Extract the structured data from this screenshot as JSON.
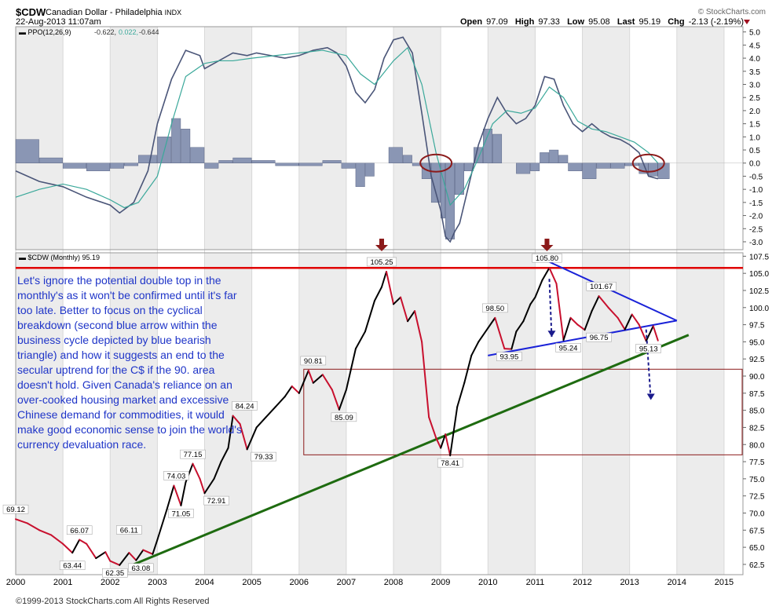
{
  "header": {
    "symbol": "$CDW",
    "name": "Canadian Dollar - Philadelphia",
    "exchange": "INDX",
    "timestamp": "22-Aug-2013 11:07am",
    "brand": "© StockCharts.com",
    "open_label": "Open",
    "open": "97.09",
    "high_label": "High",
    "high": "97.33",
    "low_label": "Low",
    "low": "95.08",
    "last_label": "Last",
    "last": "95.19",
    "chg_label": "Chg",
    "chg": "-2.13 (-2.19%)"
  },
  "footer": "©1999-2013 StockCharts.com All Rights Reserved",
  "annotation": "Let's ignore the potential double top in the monthly's as it won't be confirmed until it's far too late. Better to focus on the cyclical breakdown (second blue arrow within the business cycle depicted by blue bearish triangle) and how it suggests an end to the secular uptrend for the C$ if the 90. area doesn't hold. Given Canada's reliance on an over-cooked housing market and excessive Chinese demand for commodities, it would make good economic sense to join the world's currency devaluation race.",
  "colors": {
    "price_up": "#000000",
    "price_down": "#c8102e",
    "ppo_line": "#4a5578",
    "ppo_signal": "#3aa89a",
    "histogram": "#8a96b4",
    "resistance": "#e00000",
    "support_trend": "#1e6b10",
    "triangle": "#1a22d8",
    "box": "#8b1a1a",
    "marker": "#8b1a1a"
  },
  "chart_data": [
    {
      "type": "line",
      "title": "PPO(12,26,9)",
      "values_label": [
        "-0.622",
        "0.022",
        "-0.644"
      ],
      "ylim": [
        -3.3,
        5.2
      ],
      "yticks": [
        "5.0",
        "4.5",
        "4.0",
        "3.5",
        "3.0",
        "2.5",
        "2.0",
        "1.5",
        "1.0",
        "0.5",
        "0.0",
        "-0.5",
        "-1.0",
        "-1.5",
        "-2.0",
        "-2.5",
        "-3.0"
      ],
      "series": [
        {
          "role": "ppo",
          "x": [
            2000.0,
            2000.5,
            2001.0,
            2001.5,
            2002.0,
            2002.2,
            2002.5,
            2002.8,
            2003.0,
            2003.3,
            2003.6,
            2003.9,
            2004.0,
            2004.3,
            2004.6,
            2004.9,
            2005.1,
            2005.4,
            2005.7,
            2006.0,
            2006.3,
            2006.6,
            2006.8,
            2007.0,
            2007.2,
            2007.4,
            2007.6,
            2007.8,
            2008.0,
            2008.2,
            2008.4,
            2008.6,
            2008.8,
            2009.0,
            2009.1,
            2009.2,
            2009.3,
            2009.4,
            2009.6,
            2009.8,
            2010.0,
            2010.2,
            2010.4,
            2010.6,
            2010.8,
            2011.0,
            2011.2,
            2011.4,
            2011.6,
            2011.8,
            2012.0,
            2012.2,
            2012.4,
            2012.6,
            2012.8,
            2013.0,
            2013.2,
            2013.4,
            2013.6
          ],
          "values": [
            -0.3,
            -0.7,
            -0.9,
            -1.3,
            -1.6,
            -1.9,
            -1.5,
            -0.3,
            1.5,
            3.2,
            4.3,
            4.1,
            3.6,
            3.9,
            4.2,
            4.1,
            4.2,
            4.1,
            4.0,
            4.1,
            4.3,
            4.4,
            4.2,
            3.7,
            2.7,
            2.3,
            2.8,
            4.0,
            4.7,
            4.8,
            4.2,
            1.9,
            -0.5,
            -1.8,
            -2.8,
            -3.0,
            -2.6,
            -2.3,
            -0.8,
            0.7,
            1.7,
            2.5,
            1.9,
            1.5,
            1.7,
            2.2,
            3.3,
            3.2,
            2.2,
            1.5,
            1.2,
            1.5,
            1.2,
            1.0,
            0.9,
            0.7,
            0.4,
            -0.5,
            -0.6
          ]
        },
        {
          "role": "signal",
          "x": [
            2000.0,
            2000.5,
            2001.0,
            2001.5,
            2002.0,
            2002.3,
            2002.6,
            2003.0,
            2003.3,
            2003.6,
            2004.0,
            2004.3,
            2004.6,
            2005.0,
            2005.5,
            2006.0,
            2006.5,
            2007.0,
            2007.3,
            2007.6,
            2008.0,
            2008.3,
            2008.6,
            2008.9,
            2009.2,
            2009.5,
            2009.8,
            2010.1,
            2010.4,
            2010.7,
            2011.0,
            2011.3,
            2011.6,
            2011.9,
            2012.2,
            2012.5,
            2012.8,
            2013.1,
            2013.4,
            2013.6
          ],
          "values": [
            -1.3,
            -1.0,
            -0.8,
            -1.0,
            -1.4,
            -1.7,
            -1.5,
            -0.5,
            1.5,
            3.3,
            3.8,
            3.9,
            3.9,
            4.0,
            4.1,
            4.2,
            4.3,
            4.1,
            3.4,
            3.0,
            3.9,
            4.4,
            3.0,
            0.4,
            -1.6,
            -1.0,
            0.2,
            1.5,
            2.0,
            1.9,
            2.1,
            2.9,
            2.5,
            1.6,
            1.3,
            1.2,
            1.0,
            0.8,
            0.4,
            0.0
          ]
        }
      ],
      "histogram": {
        "x": [
          2000.0,
          2000.5,
          2001.0,
          2001.5,
          2002.0,
          2002.3,
          2002.6,
          2003.0,
          2003.3,
          2003.5,
          2003.7,
          2004.0,
          2004.3,
          2004.6,
          2005.0,
          2005.5,
          2006.0,
          2006.5,
          2006.9,
          2007.2,
          2007.4,
          2007.6,
          2007.9,
          2008.2,
          2008.4,
          2008.6,
          2008.8,
          2009.0,
          2009.1,
          2009.3,
          2009.5,
          2009.7,
          2009.9,
          2010.1,
          2010.3,
          2010.6,
          2010.9,
          2011.1,
          2011.3,
          2011.5,
          2011.7,
          2012.0,
          2012.3,
          2012.6,
          2012.9,
          2013.2,
          2013.4,
          2013.6
        ],
        "values": [
          0.9,
          0.2,
          -0.2,
          -0.3,
          -0.2,
          -0.1,
          0.3,
          1.0,
          1.7,
          1.3,
          0.6,
          -0.2,
          0.1,
          0.2,
          0.1,
          -0.1,
          -0.1,
          0.1,
          -0.2,
          -0.9,
          -0.5,
          0.0,
          0.6,
          0.3,
          -0.1,
          -0.6,
          -1.5,
          -2.1,
          -2.9,
          -1.2,
          -0.3,
          0.6,
          1.3,
          1.1,
          0.0,
          -0.4,
          -0.3,
          0.4,
          0.5,
          0.3,
          -0.3,
          -0.6,
          -0.2,
          -0.2,
          -0.1,
          -0.4,
          -0.5,
          -0.6
        ]
      },
      "circles_at": [
        2008.9,
        2013.4
      ]
    },
    {
      "type": "line",
      "title": "$CDW (Monthly) 95.19",
      "xlim": [
        2000,
        2015.4
      ],
      "ylim": [
        61.0,
        108.0
      ],
      "xticks": [
        "2000",
        "2001",
        "2002",
        "2003",
        "2004",
        "2005",
        "2006",
        "2007",
        "2008",
        "2009",
        "2010",
        "2011",
        "2012",
        "2013",
        "2014",
        "2015"
      ],
      "yticks": [
        "107.5",
        "105.0",
        "102.5",
        "100.0",
        "97.5",
        "95.0",
        "92.5",
        "90.0",
        "87.5",
        "85.0",
        "82.5",
        "80.0",
        "77.5",
        "75.0",
        "72.5",
        "70.0",
        "67.5",
        "65.0",
        "62.5"
      ],
      "x": [
        2000.0,
        2000.25,
        2000.5,
        2000.75,
        2001.0,
        2001.2,
        2001.35,
        2001.5,
        2001.7,
        2001.9,
        2002.0,
        2002.2,
        2002.4,
        2002.55,
        2002.7,
        2002.9,
        2003.0,
        2003.2,
        2003.35,
        2003.5,
        2003.6,
        2003.75,
        2003.9,
        2004.0,
        2004.2,
        2004.35,
        2004.5,
        2004.6,
        2004.75,
        2004.9,
        2005.1,
        2005.3,
        2005.5,
        2005.7,
        2005.85,
        2006.0,
        2006.2,
        2006.3,
        2006.5,
        2006.7,
        2006.85,
        2007.0,
        2007.2,
        2007.4,
        2007.6,
        2007.75,
        2007.85,
        2008.0,
        2008.15,
        2008.3,
        2008.45,
        2008.6,
        2008.75,
        2008.9,
        2009.0,
        2009.1,
        2009.2,
        2009.35,
        2009.5,
        2009.65,
        2009.8,
        2010.0,
        2010.15,
        2010.35,
        2010.5,
        2010.6,
        2010.75,
        2010.9,
        2011.0,
        2011.15,
        2011.3,
        2011.45,
        2011.6,
        2011.75,
        2011.9,
        2012.05,
        2012.2,
        2012.35,
        2012.55,
        2012.75,
        2012.9,
        2013.05,
        2013.2,
        2013.35,
        2013.5,
        2013.6
      ],
      "values": [
        69.1,
        68.5,
        67.5,
        66.8,
        65.5,
        64.2,
        66.1,
        65.5,
        63.4,
        64.3,
        63.0,
        62.4,
        64.2,
        63.1,
        64.6,
        64.0,
        66.1,
        70.5,
        74.0,
        71.1,
        74.5,
        77.2,
        75.0,
        72.9,
        75.0,
        77.5,
        79.5,
        84.2,
        83.0,
        79.3,
        82.5,
        84.0,
        85.5,
        87.0,
        88.5,
        87.5,
        90.8,
        89.0,
        90.2,
        88.0,
        85.1,
        88.0,
        94.0,
        96.5,
        101.0,
        103.0,
        105.25,
        100.5,
        101.5,
        98.0,
        99.5,
        95.0,
        84.0,
        81.0,
        79.5,
        81.5,
        78.4,
        85.5,
        89.0,
        93.0,
        95.0,
        97.0,
        98.5,
        94.0,
        93.95,
        96.5,
        98.0,
        100.5,
        101.5,
        104.0,
        105.8,
        103.5,
        95.24,
        98.5,
        97.5,
        96.75,
        99.5,
        101.67,
        100.0,
        98.5,
        96.8,
        99.0,
        97.5,
        95.13,
        97.3,
        95.19
      ],
      "labels": [
        {
          "x": 2000.0,
          "y": 69.12,
          "text": "69.12"
        },
        {
          "x": 2001.35,
          "y": 66.07,
          "text": "66.07"
        },
        {
          "x": 2001.2,
          "y": 63.44,
          "text": "63.44"
        },
        {
          "x": 2002.4,
          "y": 66.11,
          "text": "66.11"
        },
        {
          "x": 2002.1,
          "y": 62.35,
          "text": "62.35"
        },
        {
          "x": 2002.65,
          "y": 63.08,
          "text": "63.08"
        },
        {
          "x": 2003.4,
          "y": 74.03,
          "text": "74.03"
        },
        {
          "x": 2003.5,
          "y": 71.05,
          "text": "71.05"
        },
        {
          "x": 2003.75,
          "y": 77.15,
          "text": "77.15"
        },
        {
          "x": 2004.25,
          "y": 72.91,
          "text": "72.91"
        },
        {
          "x": 2004.85,
          "y": 84.24,
          "text": "84.24"
        },
        {
          "x": 2005.25,
          "y": 79.33,
          "text": "79.33"
        },
        {
          "x": 2006.3,
          "y": 90.81,
          "text": "90.81"
        },
        {
          "x": 2006.95,
          "y": 85.09,
          "text": "85.09"
        },
        {
          "x": 2007.75,
          "y": 105.25,
          "text": "105.25"
        },
        {
          "x": 2009.2,
          "y": 78.41,
          "text": "78.41"
        },
        {
          "x": 2010.15,
          "y": 98.5,
          "text": "98.50"
        },
        {
          "x": 2010.45,
          "y": 93.95,
          "text": "93.95"
        },
        {
          "x": 2011.25,
          "y": 105.8,
          "text": "105.80"
        },
        {
          "x": 2011.7,
          "y": 95.24,
          "text": "95.24"
        },
        {
          "x": 2012.4,
          "y": 101.67,
          "text": "101.67"
        },
        {
          "x": 2012.35,
          "y": 96.75,
          "text": "96.75"
        },
        {
          "x": 2013.4,
          "y": 95.13,
          "text": "95.13"
        }
      ],
      "resistance_level": 105.8,
      "support_trendline": {
        "x": [
          2002.5,
          2014.25
        ],
        "y": [
          62.5,
          96.0
        ]
      },
      "triangle_upper": {
        "x": [
          2011.1,
          2014.0
        ],
        "y": [
          107.3,
          98.1
        ]
      },
      "triangle_lower": {
        "x": [
          2010.0,
          2014.0
        ],
        "y": [
          93.0,
          98.1
        ]
      },
      "box": {
        "x": [
          2006.1,
          2015.4
        ],
        "y": [
          78.5,
          91.0
        ]
      },
      "markers_at": [
        {
          "x": 2007.75,
          "y": 105.25
        },
        {
          "x": 2011.25,
          "y": 105.8
        }
      ],
      "dashed_arrows": [
        {
          "x": [
            2011.3,
            2011.35
          ],
          "y": [
            104.2,
            95.7
          ]
        },
        {
          "x": [
            2013.35,
            2013.45
          ],
          "y": [
            96.8,
            86.5
          ]
        }
      ]
    }
  ]
}
